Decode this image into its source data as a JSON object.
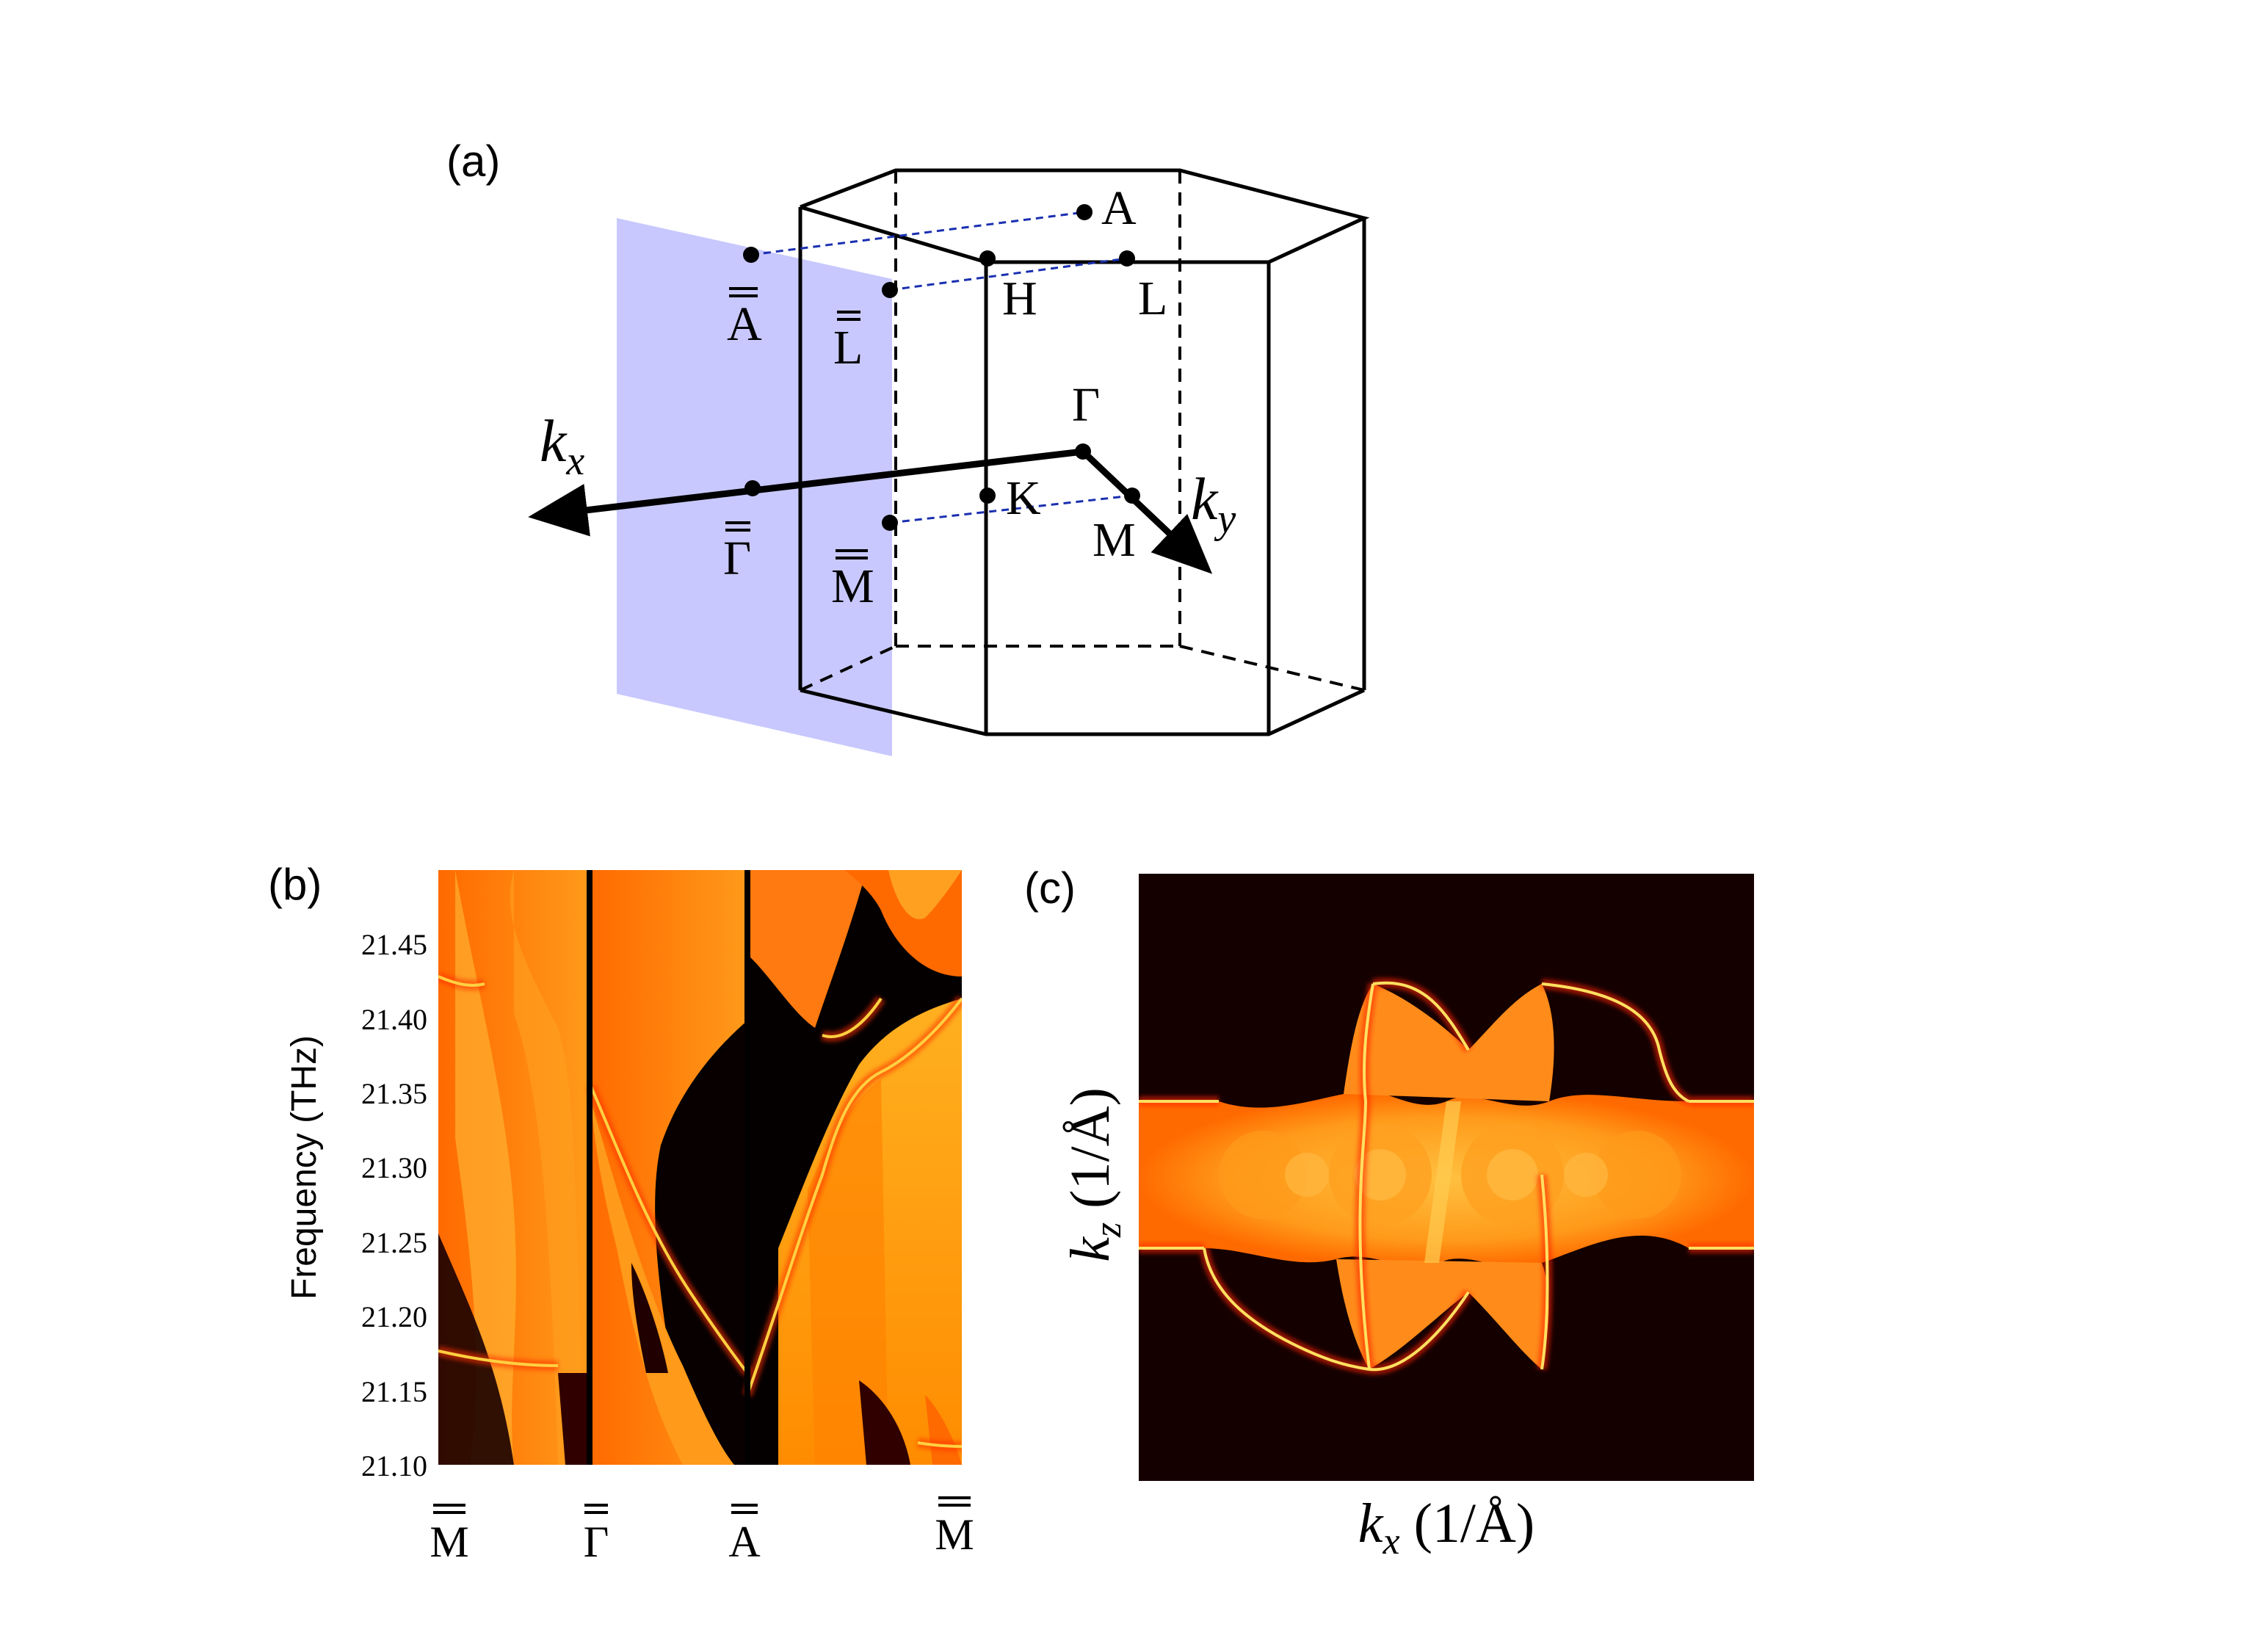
{
  "panels": {
    "a": {
      "label": "(a)",
      "kx_label": "k",
      "kx_sub": "x",
      "ky_label": "k",
      "ky_sub": "y",
      "points": {
        "A": "A",
        "H": "H",
        "L": "L",
        "Gamma": "Γ",
        "K": "K",
        "M": "M",
        "A_bar": "A",
        "L_bar": "L",
        "Gamma_bar": "Γ",
        "M_bar": "M"
      },
      "colors": {
        "surface_plane": "#c8c8ff",
        "projection_lines": "#1a2fb0"
      }
    },
    "b": {
      "label": "(b)",
      "ylabel": "Frequency (THz)",
      "yticks": [
        "21.45",
        "21.40",
        "21.35",
        "21.30",
        "21.25",
        "21.20",
        "21.15",
        "21.10"
      ],
      "xlabels": [
        "M",
        "Γ",
        "A",
        "M"
      ],
      "colormap": [
        "#000000",
        "#8b0000",
        "#ff4500",
        "#ff8c00",
        "#ffd700"
      ]
    },
    "c": {
      "label": "(c)",
      "xlabel_k": "k",
      "xlabel_sub": "x",
      "xlabel_unit": " (1/Å)",
      "ylabel_k": "k",
      "ylabel_sub": "z",
      "ylabel_unit": " (1/Å)"
    }
  },
  "chart_data": [
    {
      "type": "heatmap",
      "panel": "b",
      "ylabel": "Frequency (THz)",
      "ylim": [
        21.1,
        21.5
      ],
      "yticks": [
        21.1,
        21.15,
        21.2,
        21.25,
        21.3,
        21.35,
        21.4,
        21.45
      ],
      "xticks": [
        "M",
        "Γ",
        "A",
        "M"
      ]
    },
    {
      "type": "heatmap",
      "panel": "c",
      "xlabel": "kx (1/Å)",
      "ylabel": "kz (1/Å)"
    }
  ]
}
